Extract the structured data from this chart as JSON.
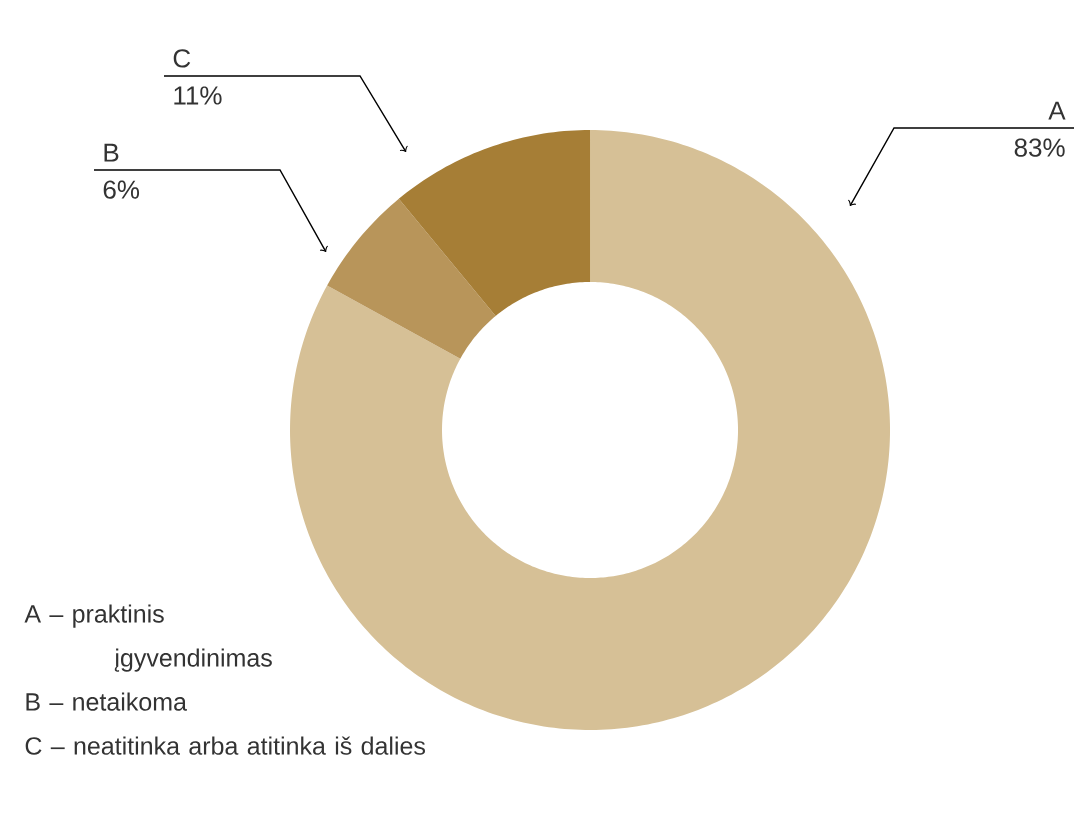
{
  "chart_data": {
    "type": "donut",
    "categories": [
      "A",
      "B",
      "C"
    ],
    "values": [
      83,
      6,
      11
    ],
    "colors": [
      "#d6c096",
      "#b8955a",
      "#a67e36"
    ],
    "value_labels": [
      "83%",
      "6%",
      "11%"
    ],
    "annotations": [
      "A – praktinis įgyvendinimas",
      "B – netaikoma",
      "C – neatitinka arba atitinka iš dalies"
    ]
  }
}
